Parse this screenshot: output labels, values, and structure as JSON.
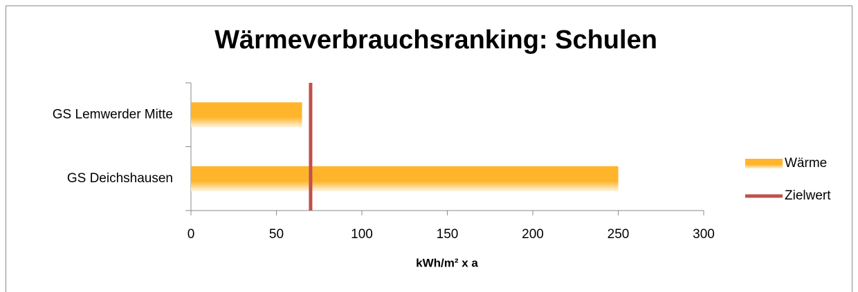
{
  "chart_data": {
    "type": "bar",
    "orientation": "horizontal",
    "title": "Wärmeverbrauchsranking: Schulen",
    "x_label": "kWh/m² x a",
    "categories": [
      "GS Lemwerder Mitte",
      "GS Deichshausen"
    ],
    "series": [
      {
        "name": "Wärme",
        "color": "#ffb52b",
        "values": [
          65,
          250
        ]
      },
      {
        "name": "Zielwert",
        "color": "#c0504d",
        "type": "line",
        "values": [
          70,
          70
        ]
      }
    ],
    "xlim": [
      0,
      300
    ],
    "xticks": [
      0,
      50,
      100,
      150,
      200,
      250,
      300
    ],
    "legend": "right"
  }
}
